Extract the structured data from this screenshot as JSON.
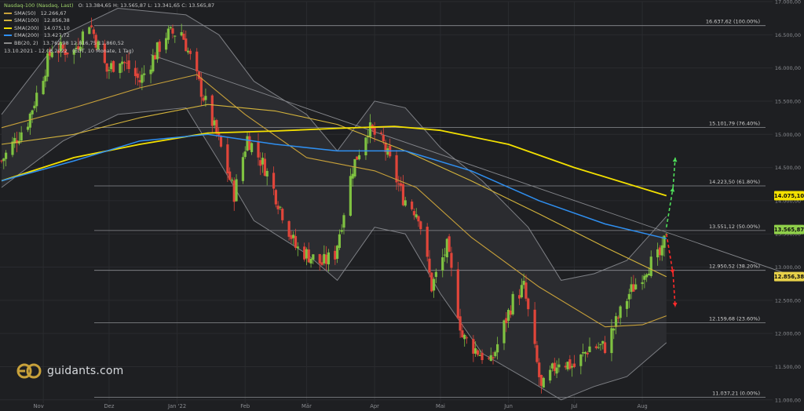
{
  "header": {
    "instrument": "Nasdaq-100 (Nasdaq, Last)",
    "ohlc": "O: 13.384,65  H: 13.565,87  L: 13.341,65  C: 13.565,87",
    "range": "13.10.2021 - 12.08.2022",
    "range_detail": "(EDT, 10 Monate, 1 Tag)"
  },
  "legend": [
    {
      "label": "SMA(50)",
      "value": "12.266,67",
      "color": "#c8a13a"
    },
    {
      "label": "SMA(100)",
      "value": "12.856,38",
      "color": "#d4b43c"
    },
    {
      "label": "SMA(200)",
      "value": "14.075,10",
      "color": "#f3e000"
    },
    {
      "label": "EMA(200)",
      "value": "13.427,72",
      "color": "#2f8ff0"
    },
    {
      "label": "BB(20, 2)",
      "value": "13.762,98  12.816,75  11.860,52",
      "color": "#8a8a8a"
    }
  ],
  "logo": {
    "text": "guidants.com",
    "icon": "guidants-logo-icon"
  },
  "chart_data": {
    "type": "candlestick",
    "ylim": [
      10950,
      17000
    ],
    "y_ticks": [
      11000,
      11500,
      12000,
      12500,
      13000,
      13500,
      14000,
      14500,
      15000,
      15500,
      16000,
      16500,
      17000
    ],
    "y_tick_labels": [
      "11.000,00",
      "11.500,00",
      "12.000,00",
      "12.500,00",
      "13.000,00",
      "13.500,00",
      "14.000,00",
      "14.500,00",
      "15.000,00",
      "15.500,00",
      "16.000,00",
      "16.500,00",
      "17.000,00"
    ],
    "x_months": [
      "Nov",
      "Dez",
      "Jan '22",
      "Feb",
      "Mär",
      "Apr",
      "Mai",
      "Jun",
      "Jul",
      "Aug"
    ],
    "x_month_dates": [
      "2021-11-01",
      "2021-12-01",
      "2022-01-01",
      "2022-02-01",
      "2022-03-01",
      "2022-04-01",
      "2022-05-01",
      "2022-06-01",
      "2022-07-01",
      "2022-08-01"
    ],
    "x_range": [
      "2021-10-13",
      "2022-08-16"
    ],
    "fib_levels": [
      {
        "value": 16637.62,
        "label": "16.637,62 (100.00%)"
      },
      {
        "value": 15101.79,
        "label": "15.101,79 (76.40%)"
      },
      {
        "value": 14223.5,
        "label": "14.223,50 (61.80%)"
      },
      {
        "value": 13551.12,
        "label": "13.551,12 (50.00%)"
      },
      {
        "value": 12950.52,
        "label": "12.950,52 (38.20%)"
      },
      {
        "value": 12159.68,
        "label": "12.159,68 (23.60%)"
      },
      {
        "value": 11037.21,
        "label": "11.037,21 (0.00%)"
      }
    ],
    "price_badges": [
      {
        "value": 14075.1,
        "label": "14.075,10",
        "color": "#f3e000"
      },
      {
        "value": 13565.87,
        "label": "13.565,87",
        "color": "#8fcf4a"
      },
      {
        "value": 12856.38,
        "label": "12.856,38",
        "color": "#e8d24a"
      }
    ],
    "anchors": [
      [
        "2021-10-13",
        14600
      ],
      [
        "2021-10-25",
        15200
      ],
      [
        "2021-11-05",
        16300
      ],
      [
        "2021-11-15",
        16250
      ],
      [
        "2021-11-22",
        16700
      ],
      [
        "2021-11-30",
        15950
      ],
      [
        "2021-12-06",
        16150
      ],
      [
        "2021-12-15",
        15800
      ],
      [
        "2021-12-27",
        16500
      ],
      [
        "2022-01-03",
        16550
      ],
      [
        "2022-01-10",
        15850
      ],
      [
        "2022-01-20",
        14900
      ],
      [
        "2022-01-27",
        14100
      ],
      [
        "2022-02-02",
        14950
      ],
      [
        "2022-02-10",
        14500
      ],
      [
        "2022-02-24",
        13300
      ],
      [
        "2022-03-08",
        13050
      ],
      [
        "2022-03-14",
        13200
      ],
      [
        "2022-03-22",
        14500
      ],
      [
        "2022-03-29",
        15100
      ],
      [
        "2022-04-05",
        14850
      ],
      [
        "2022-04-14",
        14050
      ],
      [
        "2022-04-21",
        13800
      ],
      [
        "2022-04-27",
        12700
      ],
      [
        "2022-05-04",
        13300
      ],
      [
        "2022-05-11",
        11950
      ],
      [
        "2022-05-19",
        11700
      ],
      [
        "2022-05-24",
        11550
      ],
      [
        "2022-06-03",
        12500
      ],
      [
        "2022-06-08",
        12700
      ],
      [
        "2022-06-16",
        11150
      ],
      [
        "2022-06-24",
        11600
      ],
      [
        "2022-07-01",
        11500
      ],
      [
        "2022-07-08",
        11800
      ],
      [
        "2022-07-15",
        11800
      ],
      [
        "2022-07-26",
        12600
      ],
      [
        "2022-08-03",
        13000
      ],
      [
        "2022-08-10",
        13200
      ],
      [
        "2022-08-12",
        13565
      ]
    ],
    "series": [
      {
        "name": "SMA(50)",
        "color": "#c8a13a",
        "points": [
          [
            "2021-10-13",
            15100
          ],
          [
            "2021-11-15",
            15400
          ],
          [
            "2021-12-15",
            15700
          ],
          [
            "2022-01-10",
            15900
          ],
          [
            "2022-02-01",
            15300
          ],
          [
            "2022-03-01",
            14650
          ],
          [
            "2022-04-01",
            14450
          ],
          [
            "2022-04-20",
            14200
          ],
          [
            "2022-05-15",
            13450
          ],
          [
            "2022-06-15",
            12700
          ],
          [
            "2022-07-15",
            12100
          ],
          [
            "2022-08-01",
            12130
          ],
          [
            "2022-08-12",
            12266.67
          ]
        ]
      },
      {
        "name": "SMA(100)",
        "color": "#d4b43c",
        "points": [
          [
            "2021-10-13",
            14850
          ],
          [
            "2021-11-15",
            15000
          ],
          [
            "2021-12-15",
            15250
          ],
          [
            "2022-01-15",
            15450
          ],
          [
            "2022-02-15",
            15350
          ],
          [
            "2022-03-15",
            15150
          ],
          [
            "2022-04-15",
            14750
          ],
          [
            "2022-05-15",
            14300
          ],
          [
            "2022-06-15",
            13800
          ],
          [
            "2022-07-15",
            13300
          ],
          [
            "2022-08-12",
            12856.38
          ]
        ]
      },
      {
        "name": "SMA(200)",
        "color": "#f3e000",
        "points": [
          [
            "2021-10-13",
            14300
          ],
          [
            "2021-11-15",
            14650
          ],
          [
            "2021-12-15",
            14850
          ],
          [
            "2022-01-15",
            15020
          ],
          [
            "2022-02-15",
            15050
          ],
          [
            "2022-03-15",
            15090
          ],
          [
            "2022-04-10",
            15120
          ],
          [
            "2022-05-01",
            15060
          ],
          [
            "2022-06-01",
            14850
          ],
          [
            "2022-07-01",
            14500
          ],
          [
            "2022-08-12",
            14075.1
          ]
        ]
      },
      {
        "name": "EMA(200)",
        "color": "#2f8ff0",
        "points": [
          [
            "2021-10-13",
            14300
          ],
          [
            "2021-11-15",
            14600
          ],
          [
            "2021-12-15",
            14900
          ],
          [
            "2022-01-15",
            15000
          ],
          [
            "2022-02-15",
            14850
          ],
          [
            "2022-03-15",
            14750
          ],
          [
            "2022-04-15",
            14750
          ],
          [
            "2022-05-15",
            14450
          ],
          [
            "2022-06-15",
            14000
          ],
          [
            "2022-07-15",
            13650
          ],
          [
            "2022-08-12",
            13427.72
          ]
        ]
      }
    ],
    "bollinger": {
      "upper": [
        [
          "2021-10-13",
          15300
        ],
        [
          "2021-11-10",
          16500
        ],
        [
          "2021-12-05",
          16900
        ],
        [
          "2022-01-05",
          16800
        ],
        [
          "2022-01-20",
          16500
        ],
        [
          "2022-02-05",
          15800
        ],
        [
          "2022-03-01",
          15300
        ],
        [
          "2022-03-15",
          14750
        ],
        [
          "2022-04-01",
          15500
        ],
        [
          "2022-04-15",
          15400
        ],
        [
          "2022-05-01",
          14800
        ],
        [
          "2022-05-20",
          14300
        ],
        [
          "2022-06-10",
          13600
        ],
        [
          "2022-06-25",
          12800
        ],
        [
          "2022-07-10",
          12900
        ],
        [
          "2022-07-25",
          13100
        ],
        [
          "2022-08-12",
          13762.98
        ]
      ],
      "lower": [
        [
          "2021-10-13",
          14200
        ],
        [
          "2021-11-10",
          14900
        ],
        [
          "2021-12-05",
          15300
        ],
        [
          "2022-01-05",
          15400
        ],
        [
          "2022-01-20",
          14600
        ],
        [
          "2022-02-05",
          13700
        ],
        [
          "2022-03-01",
          13200
        ],
        [
          "2022-03-15",
          12800
        ],
        [
          "2022-04-01",
          13600
        ],
        [
          "2022-04-15",
          13500
        ],
        [
          "2022-05-01",
          12600
        ],
        [
          "2022-05-20",
          11700
        ],
        [
          "2022-06-10",
          11300
        ],
        [
          "2022-06-25",
          11000
        ],
        [
          "2022-07-10",
          11200
        ],
        [
          "2022-07-25",
          11350
        ],
        [
          "2022-08-12",
          11860.52
        ]
      ]
    },
    "trendline": [
      [
        "2021-12-20",
        16200
      ],
      [
        "2022-08-16",
        13000
      ]
    ],
    "scenarios": {
      "up": [
        [
          "2022-08-12",
          13600
        ],
        [
          "2022-08-15",
          14200
        ],
        [
          "2022-08-16",
          14650
        ]
      ],
      "down": [
        [
          "2022-08-12",
          13500
        ],
        [
          "2022-08-15",
          12900
        ],
        [
          "2022-08-16",
          12400
        ]
      ]
    }
  }
}
